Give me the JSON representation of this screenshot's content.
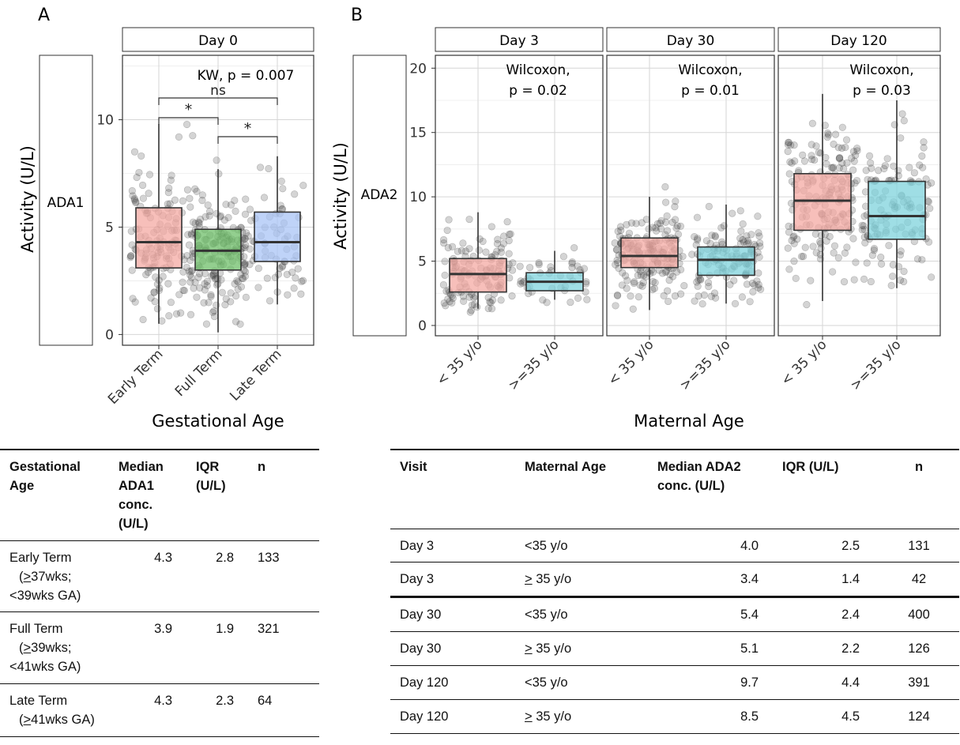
{
  "panel_a": {
    "label": "A",
    "facet_title": "Day 0",
    "row_strip": "ADA1",
    "y_axis_label": "Activity (U/L)",
    "x_axis_label": "Gestational Age",
    "test_label": "KW, p = 0.007",
    "brackets": [
      {
        "from": "Early Term",
        "to": "Late Term",
        "label": "ns"
      },
      {
        "from": "Early Term",
        "to": "Full Term",
        "label": "*"
      },
      {
        "from": "Full Term",
        "to": "Late Term",
        "label": "*"
      }
    ]
  },
  "panel_b": {
    "label": "B",
    "row_strip": "ADA2",
    "y_axis_label": "Activity (U/L)",
    "x_axis_label": "Maternal Age",
    "facets": [
      {
        "title": "Day 3",
        "test_line1": "Wilcoxon,",
        "test_line2": "p = 0.02"
      },
      {
        "title": "Day 30",
        "test_line1": "Wilcoxon,",
        "test_line2": "p = 0.01"
      },
      {
        "title": "Day 120",
        "test_line1": "Wilcoxon,",
        "test_line2": "p = 0.03"
      }
    ]
  },
  "chart_data": [
    {
      "type": "box",
      "title": "Day 0",
      "strip": "ADA1",
      "xlabel": "Gestational Age",
      "ylabel": "Activity (U/L)",
      "ylim": [
        -0.5,
        13
      ],
      "yticks": [
        0,
        5,
        10
      ],
      "categories": [
        "Early Term",
        "Full Term",
        "Late Term"
      ],
      "colors": [
        "#f4a9a3",
        "#6fbf6a",
        "#a9c4f5"
      ],
      "boxes": [
        {
          "category": "Early Term",
          "min": 0.5,
          "q1": 3.1,
          "median": 4.3,
          "q3": 5.9,
          "max": 9.8,
          "n": 133
        },
        {
          "category": "Full Term",
          "min": 0.1,
          "q1": 3.0,
          "median": 3.9,
          "q3": 4.9,
          "max": 7.7,
          "n": 321
        },
        {
          "category": "Late Term",
          "min": 1.4,
          "q1": 3.4,
          "median": 4.3,
          "q3": 5.7,
          "max": 8.3,
          "n": 64
        }
      ]
    },
    {
      "type": "box",
      "title": "Day 3",
      "strip": "ADA2",
      "xlabel": "Maternal Age",
      "ylabel": "Activity (U/L)",
      "ylim": [
        -0.8,
        21
      ],
      "yticks": [
        0,
        5,
        10,
        15,
        20
      ],
      "categories": [
        "< 35 y/o",
        ">=35 y/o"
      ],
      "colors": [
        "#f4a9a3",
        "#7fd3dc"
      ],
      "boxes": [
        {
          "category": "< 35 y/o",
          "min": 1.3,
          "q1": 2.6,
          "median": 4.0,
          "q3": 5.2,
          "max": 8.8,
          "n": 131
        },
        {
          "category": ">=35 y/o",
          "min": 2.0,
          "q1": 2.7,
          "median": 3.4,
          "q3": 4.1,
          "max": 5.8,
          "n": 42
        }
      ]
    },
    {
      "type": "box",
      "title": "Day 30",
      "strip": "ADA2",
      "xlabel": "Maternal Age",
      "ylabel": "Activity (U/L)",
      "ylim": [
        -0.8,
        21
      ],
      "yticks": [
        0,
        5,
        10,
        15,
        20
      ],
      "categories": [
        "< 35 y/o",
        ">=35 y/o"
      ],
      "colors": [
        "#f4a9a3",
        "#7fd3dc"
      ],
      "boxes": [
        {
          "category": "< 35 y/o",
          "min": 1.2,
          "q1": 4.5,
          "median": 5.4,
          "q3": 6.8,
          "max": 10.0,
          "n": 400
        },
        {
          "category": ">=35 y/o",
          "min": 1.7,
          "q1": 3.9,
          "median": 5.1,
          "q3": 6.1,
          "max": 9.4,
          "n": 126
        }
      ]
    },
    {
      "type": "box",
      "title": "Day 120",
      "strip": "ADA2",
      "xlabel": "Maternal Age",
      "ylabel": "Activity (U/L)",
      "ylim": [
        -0.8,
        21
      ],
      "yticks": [
        0,
        5,
        10,
        15,
        20
      ],
      "categories": [
        "< 35 y/o",
        ">=35 y/o"
      ],
      "colors": [
        "#f4a9a3",
        "#7fd3dc"
      ],
      "boxes": [
        {
          "category": "< 35 y/o",
          "min": 1.9,
          "q1": 7.4,
          "median": 9.7,
          "q3": 11.8,
          "max": 18.0,
          "n": 391
        },
        {
          "category": ">=35 y/o",
          "min": 2.9,
          "q1": 6.7,
          "median": 8.5,
          "q3": 11.2,
          "max": 17.5,
          "n": 124
        }
      ]
    }
  ],
  "table_a": {
    "headers": [
      "Gestational Age",
      "Median ADA1 conc. (U/L)",
      "IQR (U/L)",
      "n"
    ],
    "rows": [
      {
        "group": "Early Term",
        "range_mark": ">",
        "range": "37wks;",
        "range2": "<39wks GA)",
        "median": "4.3",
        "iqr": "2.8",
        "n": "133"
      },
      {
        "group": "Full Term",
        "range_mark": ">",
        "range": "39wks;",
        "range2": "<41wks GA)",
        "median": "3.9",
        "iqr": "1.9",
        "n": "321"
      },
      {
        "group": "Late Term",
        "range_mark": ">",
        "range": "41wks GA)",
        "range2": "",
        "median": "4.3",
        "iqr": "2.3",
        "n": "64"
      }
    ]
  },
  "table_b": {
    "headers": [
      "Visit",
      "Maternal Age",
      "Median ADA2 conc. (U/L)",
      "IQR (U/L)",
      "n"
    ],
    "rows": [
      {
        "visit": "Day 3",
        "age_mark": "",
        "age": "<35 y/o",
        "median": "4.0",
        "iqr": "2.5",
        "n": "131"
      },
      {
        "visit": "Day 3",
        "age_mark": ">",
        "age": " 35 y/o",
        "median": "3.4",
        "iqr": "1.4",
        "n": "42"
      },
      {
        "visit": "Day 30",
        "age_mark": "",
        "age": "<35 y/o",
        "median": "5.4",
        "iqr": "2.4",
        "n": "400"
      },
      {
        "visit": "Day 30",
        "age_mark": ">",
        "age": " 35 y/o",
        "median": "5.1",
        "iqr": "2.2",
        "n": "126"
      },
      {
        "visit": "Day 120",
        "age_mark": "",
        "age": "<35 y/o",
        "median": "9.7",
        "iqr": "4.4",
        "n": "391"
      },
      {
        "visit": "Day 120",
        "age_mark": ">",
        "age": " 35 y/o",
        "median": "8.5",
        "iqr": "4.5",
        "n": "124"
      }
    ]
  }
}
